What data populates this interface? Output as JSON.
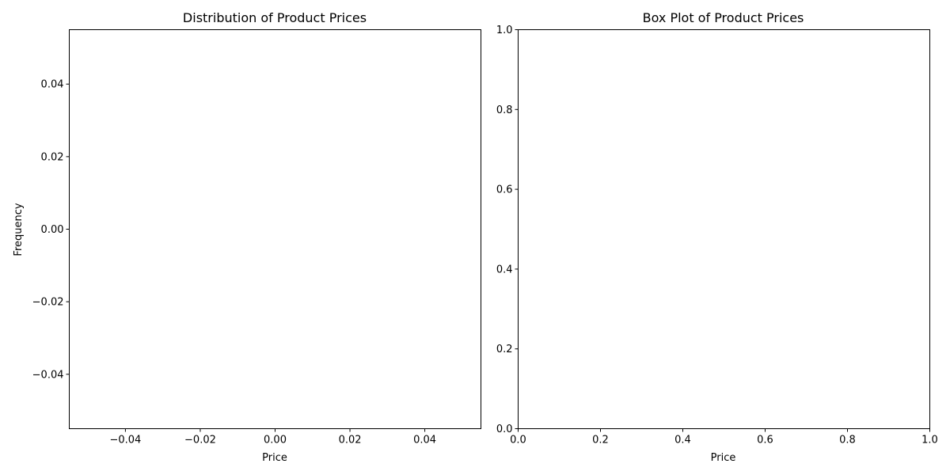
{
  "chart_data": [
    {
      "type": "histogram",
      "title": "Distribution of Product Prices",
      "xlabel": "Price",
      "ylabel": "Frequency",
      "values": [],
      "xlim": [
        -0.055,
        0.055
      ],
      "ylim": [
        -0.055,
        0.055
      ],
      "xticks": [
        -0.04,
        -0.02,
        0.0,
        0.02,
        0.04
      ],
      "xtick_labels": [
        "−0.04",
        "−0.02",
        "0.00",
        "0.02",
        "0.04"
      ],
      "yticks": [
        -0.04,
        -0.02,
        0.0,
        0.02,
        0.04
      ],
      "ytick_labels": [
        "−0.04",
        "−0.02",
        "0.00",
        "0.02",
        "0.04"
      ],
      "grid": false
    },
    {
      "type": "box",
      "title": "Box Plot of Product Prices",
      "xlabel": "Price",
      "ylabel": "",
      "values": [],
      "xlim": [
        0,
        1
      ],
      "ylim": [
        0,
        1
      ],
      "xticks": [
        0,
        0.2,
        0.4,
        0.6,
        0.8,
        1.0
      ],
      "xtick_labels": [
        "0.0",
        "0.2",
        "0.4",
        "0.6",
        "0.8",
        "1.0"
      ],
      "yticks": [
        0,
        0.2,
        0.4,
        0.6,
        0.8,
        1.0
      ],
      "ytick_labels": [
        "0.0",
        "0.2",
        "0.4",
        "0.6",
        "0.8",
        "1.0"
      ],
      "grid": false
    }
  ]
}
